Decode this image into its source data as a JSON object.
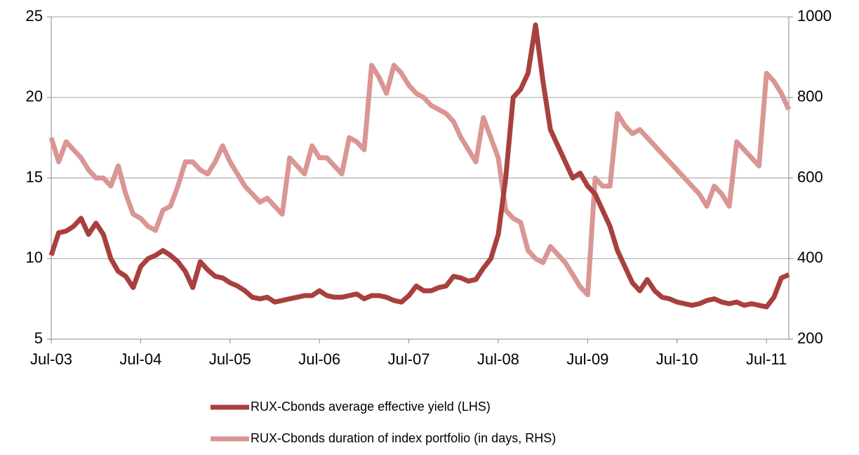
{
  "chart_data": {
    "type": "line",
    "x": [
      "2003-07",
      "2003-08",
      "2003-09",
      "2003-10",
      "2003-11",
      "2003-12",
      "2004-01",
      "2004-02",
      "2004-03",
      "2004-04",
      "2004-05",
      "2004-06",
      "2004-07",
      "2004-08",
      "2004-09",
      "2004-10",
      "2004-11",
      "2004-12",
      "2005-01",
      "2005-02",
      "2005-03",
      "2005-04",
      "2005-05",
      "2005-06",
      "2005-07",
      "2005-08",
      "2005-09",
      "2005-10",
      "2005-11",
      "2005-12",
      "2006-01",
      "2006-02",
      "2006-03",
      "2006-04",
      "2006-05",
      "2006-06",
      "2006-07",
      "2006-08",
      "2006-09",
      "2006-10",
      "2006-11",
      "2006-12",
      "2007-01",
      "2007-02",
      "2007-03",
      "2007-04",
      "2007-05",
      "2007-06",
      "2007-07",
      "2007-08",
      "2007-09",
      "2007-10",
      "2007-11",
      "2007-12",
      "2008-01",
      "2008-02",
      "2008-03",
      "2008-04",
      "2008-05",
      "2008-06",
      "2008-07",
      "2008-08",
      "2008-09",
      "2008-10",
      "2008-11",
      "2008-12",
      "2009-01",
      "2009-02",
      "2009-03",
      "2009-04",
      "2009-05",
      "2009-06",
      "2009-07",
      "2009-08",
      "2009-09",
      "2009-10",
      "2009-11",
      "2009-12",
      "2010-01",
      "2010-02",
      "2010-03",
      "2010-04",
      "2010-05",
      "2010-06",
      "2010-07",
      "2010-08",
      "2010-09",
      "2010-10",
      "2010-11",
      "2010-12",
      "2011-01",
      "2011-02",
      "2011-03",
      "2011-04",
      "2011-05",
      "2011-06",
      "2011-07",
      "2011-08",
      "2011-09",
      "2011-10"
    ],
    "series": [
      {
        "name": "RUX-Cbonds average effective yield (LHS)",
        "color": "#a8403e",
        "axis": "y",
        "values": [
          10.2,
          11.6,
          11.7,
          12,
          12.5,
          11.5,
          12.2,
          11.5,
          10,
          9.2,
          8.9,
          8.2,
          9.5,
          10,
          10.2,
          10.5,
          10.2,
          9.8,
          9.2,
          8.2,
          9.8,
          9.3,
          8.9,
          8.8,
          8.5,
          8.3,
          8.0,
          7.6,
          7.5,
          7.6,
          7.3,
          7.4,
          7.5,
          7.6,
          7.7,
          7.7,
          8.0,
          7.7,
          7.6,
          7.6,
          7.7,
          7.8,
          7.5,
          7.7,
          7.7,
          7.6,
          7.4,
          7.3,
          7.7,
          8.3,
          8.0,
          8.0,
          8.2,
          8.3,
          8.9,
          8.8,
          8.6,
          8.7,
          9.4,
          10.0,
          11.5,
          15,
          20,
          20.5,
          21.5,
          24.5,
          21,
          18,
          17,
          16,
          15,
          15.3,
          14.5,
          14,
          13,
          12,
          10.5,
          9.5,
          8.5,
          8.0,
          8.7,
          8.0,
          7.6,
          7.5,
          7.3,
          7.2,
          7.1,
          7.2,
          7.4,
          7.5,
          7.3,
          7.2,
          7.3,
          7.1,
          7.2,
          7.1,
          7.0,
          7.6,
          8.8,
          9.0
        ]
      },
      {
        "name": "RUX-Cbonds duration of index portfolio (in days, RHS)",
        "color": "#d99694",
        "axis": "y2",
        "values": [
          700,
          640,
          690,
          670,
          650,
          620,
          600,
          600,
          580,
          630,
          560,
          510,
          500,
          480,
          470,
          520,
          530,
          580,
          640,
          640,
          620,
          610,
          640,
          680,
          640,
          610,
          580,
          560,
          540,
          550,
          530,
          510,
          650,
          630,
          610,
          680,
          650,
          650,
          630,
          610,
          700,
          690,
          670,
          880,
          850,
          810,
          880,
          860,
          830,
          810,
          800,
          780,
          770,
          760,
          740,
          700,
          670,
          640,
          750,
          700,
          650,
          520,
          500,
          490,
          420,
          400,
          390,
          430,
          410,
          390,
          360,
          330,
          310,
          600,
          580,
          580,
          760,
          730,
          710,
          720,
          700,
          680,
          660,
          640,
          620,
          600,
          580,
          560,
          530,
          580,
          560,
          530,
          690,
          670,
          650,
          630,
          860,
          840,
          810,
          770
        ]
      }
    ],
    "xlim": [
      "2003-07",
      "2011-10"
    ],
    "xticks": [
      {
        "value": "2003-07",
        "label": "Jul-03"
      },
      {
        "value": "2004-07",
        "label": "Jul-04"
      },
      {
        "value": "2005-07",
        "label": "Jul-05"
      },
      {
        "value": "2006-07",
        "label": "Jul-06"
      },
      {
        "value": "2007-07",
        "label": "Jul-07"
      },
      {
        "value": "2008-07",
        "label": "Jul-08"
      },
      {
        "value": "2009-07",
        "label": "Jul-09"
      },
      {
        "value": "2010-07",
        "label": "Jul-10"
      },
      {
        "value": "2011-07",
        "label": "Jul-11"
      }
    ],
    "ylim": [
      5,
      25
    ],
    "yticks": [
      5,
      10,
      15,
      20,
      25
    ],
    "y2lim": [
      200,
      1000
    ],
    "y2ticks": [
      200,
      400,
      600,
      800,
      1000
    ],
    "grid": true,
    "legend": "bottom"
  }
}
